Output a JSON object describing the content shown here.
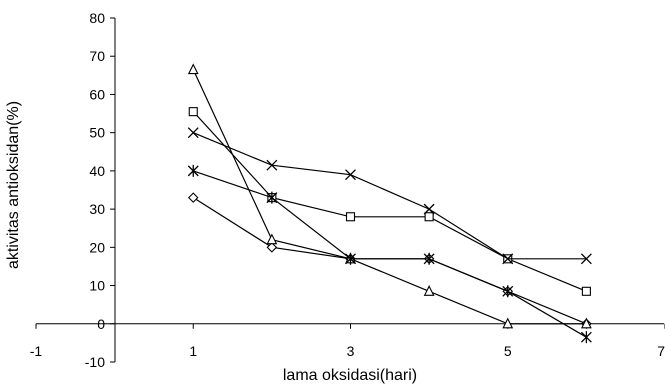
{
  "chart_data": {
    "type": "line",
    "xlabel": "lama oksidasi(hari)",
    "ylabel": "aktivitas antioksidan(%)",
    "xlim": [
      -1,
      7
    ],
    "ylim": [
      -10,
      80
    ],
    "xticks": [
      -1,
      1,
      3,
      5,
      7
    ],
    "yticks": [
      -10,
      0,
      10,
      20,
      30,
      40,
      50,
      60,
      70,
      80
    ],
    "grid": false,
    "legend": "none",
    "series": [
      {
        "marker": "diamond",
        "x": [
          1,
          2,
          3,
          4,
          5,
          6
        ],
        "y": [
          33,
          20,
          17,
          17,
          8.5,
          0
        ]
      },
      {
        "marker": "square",
        "x": [
          1,
          2,
          3,
          4,
          5,
          6
        ],
        "y": [
          55.5,
          33,
          28,
          28,
          17,
          8.5
        ]
      },
      {
        "marker": "triangle",
        "x": [
          1,
          2,
          3,
          4,
          5,
          6
        ],
        "y": [
          66.5,
          22,
          17,
          8.5,
          0,
          0
        ]
      },
      {
        "marker": "x",
        "x": [
          1,
          2,
          3,
          4,
          5,
          6
        ],
        "y": [
          50,
          41.5,
          39,
          30,
          17,
          17
        ]
      },
      {
        "marker": "asterisk",
        "x": [
          1,
          2,
          3,
          4,
          5,
          6
        ],
        "y": [
          40,
          33,
          17,
          17,
          8.5,
          -3.5
        ]
      }
    ]
  }
}
